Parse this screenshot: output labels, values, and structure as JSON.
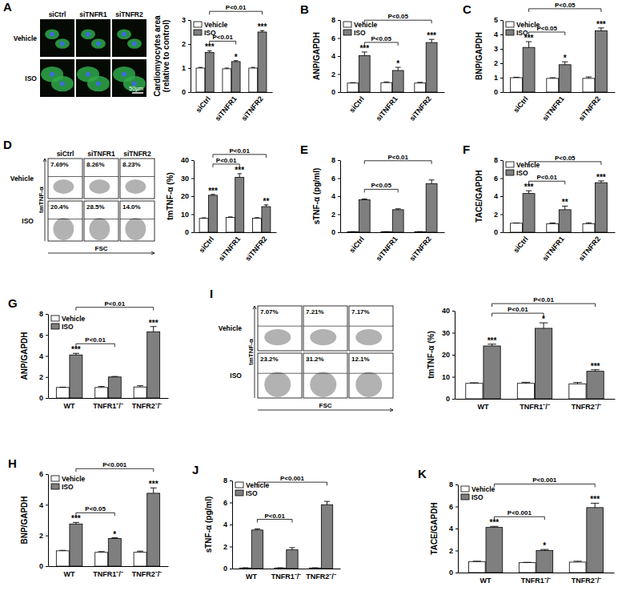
{
  "chart_data": [
    {
      "type": "bar",
      "y_label": "Cardiomyocytes area (relative to control)",
      "categories": [
        "siCtrl",
        "siTNFR1",
        "siTNFR2"
      ],
      "series": [
        {
          "name": "Vehicle",
          "color": "#ffffff",
          "values": [
            1.0,
            0.97,
            1.0
          ],
          "errors": [
            0.03,
            0.03,
            0.03
          ]
        },
        {
          "name": "ISO",
          "color": "#7f7f7f",
          "values": [
            1.65,
            1.27,
            2.5
          ],
          "errors": [
            0.07,
            0.04,
            0.06
          ],
          "significance": [
            "***",
            "*",
            "***"
          ]
        }
      ],
      "ylim": [
        0,
        3
      ],
      "yticks": [
        0,
        1,
        2,
        3
      ],
      "legend": "top-left",
      "comparisons": [
        {
          "between": [
            "siCtrl",
            "siTNFR1"
          ],
          "label": "P<0.01"
        },
        {
          "between": [
            "siCtrl",
            "siTNFR2"
          ],
          "label": "P<0.01"
        }
      ]
    },
    {
      "type": "bar",
      "title": "B",
      "y_label": "ANP/GAPDH",
      "categories": [
        "siCtrl",
        "siTNFR1",
        "siTNFR2"
      ],
      "series": [
        {
          "name": "Vehicle",
          "color": "#ffffff",
          "values": [
            1.0,
            1.05,
            1.0
          ],
          "errors": [
            0.05,
            0.08,
            0.08
          ]
        },
        {
          "name": "ISO",
          "color": "#7f7f7f",
          "values": [
            4.05,
            2.4,
            5.5
          ],
          "errors": [
            0.4,
            0.35,
            0.35
          ],
          "significance": [
            "***",
            "*",
            "***"
          ]
        }
      ],
      "ylim": [
        0,
        8
      ],
      "yticks": [
        0,
        2,
        4,
        6,
        8
      ],
      "legend": "top-left",
      "comparisons": [
        {
          "between": [
            "siCtrl",
            "siTNFR1"
          ],
          "label": "P<0.05"
        },
        {
          "between": [
            "siCtrl",
            "siTNFR2"
          ],
          "label": "P<0.05"
        }
      ]
    },
    {
      "type": "bar",
      "title": "C",
      "y_label": "BNP/GAPDH",
      "categories": [
        "siCtrl",
        "siTNFR1",
        "siTNFR2"
      ],
      "series": [
        {
          "name": "Vehicle",
          "color": "#ffffff",
          "values": [
            1.0,
            0.95,
            0.95
          ],
          "errors": [
            0.03,
            0.05,
            0.1
          ]
        },
        {
          "name": "ISO",
          "color": "#7f7f7f",
          "values": [
            3.1,
            1.9,
            4.25
          ],
          "errors": [
            0.4,
            0.2,
            0.2
          ],
          "significance": [
            "***",
            "*",
            "***"
          ]
        }
      ],
      "ylim": [
        0,
        5
      ],
      "yticks": [
        0,
        1,
        2,
        3,
        4,
        5
      ],
      "legend": "top-left",
      "comparisons": [
        {
          "between": [
            "siCtrl",
            "siTNFR1"
          ],
          "label": "P<0.05"
        },
        {
          "between": [
            "siCtrl",
            "siTNFR2"
          ],
          "label": "P<0.05"
        }
      ]
    },
    {
      "type": "bar",
      "y_label": "tmTNF-α (%)",
      "categories": [
        "siCtrl",
        "siTNFR1",
        "siTNFR2"
      ],
      "series": [
        {
          "color": "#ffffff",
          "values": [
            7.7,
            8.2,
            7.8
          ],
          "errors": [
            0.3,
            0.3,
            0.3
          ]
        },
        {
          "color": "#7f7f7f",
          "values": [
            20.5,
            30.5,
            14.2
          ],
          "errors": [
            0.5,
            2.0,
            1.0
          ],
          "significance": [
            "***",
            "***",
            "**"
          ]
        }
      ],
      "ylim": [
        0,
        40
      ],
      "yticks": [
        0,
        10,
        20,
        30,
        40
      ],
      "comparisons": [
        {
          "between": [
            "siCtrl",
            "siTNFR1"
          ],
          "label": "P<0.01"
        },
        {
          "between": [
            "siCtrl",
            "siTNFR2"
          ],
          "label": "P<0.01"
        }
      ]
    },
    {
      "type": "bar",
      "title": "E",
      "y_label": "sTNF-α (pg/ml)",
      "categories": [
        "siCtrl",
        "siTNFR1",
        "siTNFR2"
      ],
      "series": [
        {
          "color": "#ffffff",
          "values": [
            0.05,
            0.05,
            0.05
          ],
          "errors": [
            0.02,
            0.02,
            0.02
          ]
        },
        {
          "color": "#7f7f7f",
          "values": [
            3.6,
            2.5,
            5.4
          ],
          "errors": [
            0.1,
            0.1,
            0.4
          ]
        }
      ],
      "ylim": [
        0,
        8
      ],
      "yticks": [
        0,
        2,
        4,
        6,
        8
      ],
      "comparisons": [
        {
          "between": [
            "siCtrl",
            "siTNFR1"
          ],
          "label": "P<0.05"
        },
        {
          "between": [
            "siCtrl",
            "siTNFR2"
          ],
          "label": "P<0.01"
        }
      ]
    },
    {
      "type": "bar",
      "title": "F",
      "y_label": "TACE/GAPDH",
      "categories": [
        "siCtrl",
        "siTNFR1",
        "siTNFR2"
      ],
      "series": [
        {
          "name": "Vehicle",
          "color": "#ffffff",
          "values": [
            1.0,
            0.95,
            0.95
          ],
          "errors": [
            0.03,
            0.08,
            0.1
          ]
        },
        {
          "name": "ISO",
          "color": "#7f7f7f",
          "values": [
            4.3,
            2.5,
            5.5
          ],
          "errors": [
            0.3,
            0.4,
            0.2
          ],
          "significance": [
            "***",
            "**",
            "***"
          ]
        }
      ],
      "ylim": [
        0,
        8
      ],
      "yticks": [
        0,
        2,
        4,
        6,
        8
      ],
      "legend": "top-left",
      "comparisons": [
        {
          "between": [
            "siCtrl",
            "siTNFR1"
          ],
          "label": "P<0.01"
        },
        {
          "between": [
            "siCtrl",
            "siTNFR2"
          ],
          "label": "P<0.05"
        }
      ]
    },
    {
      "type": "bar",
      "title": "G",
      "y_label": "ANP/GAPDH",
      "categories": [
        "WT",
        "TNFR1⁻/⁻",
        "TNFR2⁻/⁻"
      ],
      "series": [
        {
          "name": "Vehicle",
          "color": "#ffffff",
          "values": [
            1.0,
            1.0,
            1.05
          ],
          "errors": [
            0.03,
            0.1,
            0.12
          ]
        },
        {
          "name": "ISO",
          "color": "#7f7f7f",
          "values": [
            4.1,
            2.0,
            6.3
          ],
          "errors": [
            0.15,
            0.05,
            0.5
          ],
          "significance": [
            "***",
            null,
            "***"
          ]
        }
      ],
      "ylim": [
        0,
        8
      ],
      "yticks": [
        0,
        2,
        4,
        6,
        8
      ],
      "legend": "top-left",
      "comparisons": [
        {
          "between": [
            "WT",
            "TNFR1⁻/⁻"
          ],
          "label": "P<0.01"
        },
        {
          "between": [
            "WT",
            "TNFR2⁻/⁻"
          ],
          "label": "P<0.01"
        }
      ]
    },
    {
      "type": "bar",
      "title": "H",
      "y_label": "BNP/GAPDH",
      "categories": [
        "WT",
        "TNFR1⁻/⁻",
        "TNFR2⁻/⁻"
      ],
      "series": [
        {
          "name": "Vehicle",
          "color": "#ffffff",
          "values": [
            1.0,
            0.9,
            0.9
          ],
          "errors": [
            0.03,
            0.05,
            0.08
          ]
        },
        {
          "name": "ISO",
          "color": "#7f7f7f",
          "values": [
            2.75,
            1.8,
            4.75
          ],
          "errors": [
            0.1,
            0.05,
            0.35
          ],
          "significance": [
            "***",
            "*",
            "***"
          ]
        }
      ],
      "ylim": [
        0,
        6
      ],
      "yticks": [
        0,
        2,
        4,
        6
      ],
      "legend": "top-left",
      "comparisons": [
        {
          "between": [
            "WT",
            "TNFR1⁻/⁻"
          ],
          "label": "P<0.05"
        },
        {
          "between": [
            "WT",
            "TNFR2⁻/⁻"
          ],
          "label": "P<0.001"
        }
      ]
    },
    {
      "type": "bar",
      "y_label": "tmTNF-α (%)",
      "categories": [
        "WT",
        "TNFR1⁻/⁻",
        "TNFR2⁻/⁻"
      ],
      "series": [
        {
          "color": "#ffffff",
          "values": [
            7.0,
            7.0,
            6.8
          ],
          "errors": [
            0.3,
            0.5,
            0.6
          ]
        },
        {
          "color": "#7f7f7f",
          "values": [
            24.0,
            32.0,
            12.5
          ],
          "errors": [
            0.8,
            2.5,
            0.7
          ],
          "significance": [
            "***",
            "*",
            "***"
          ]
        }
      ],
      "ylim": [
        0,
        40
      ],
      "yticks": [
        0,
        10,
        20,
        30,
        40
      ],
      "comparisons": [
        {
          "between": [
            "WT",
            "TNFR1⁻/⁻"
          ],
          "label": "P<0.01"
        },
        {
          "between": [
            "WT",
            "TNFR2⁻/⁻"
          ],
          "label": "P<0.01"
        }
      ]
    },
    {
      "type": "bar",
      "title": "J",
      "y_label": "sTNF-α (pg/ml)",
      "categories": [
        "WT",
        "TNFR1⁻/⁻",
        "TNFR2⁻/⁻"
      ],
      "series": [
        {
          "name": "Vehicle",
          "color": "#ffffff",
          "values": [
            0.05,
            0.05,
            0.05
          ],
          "errors": [
            0.02,
            0.02,
            0.02
          ]
        },
        {
          "name": "ISO",
          "color": "#7f7f7f",
          "values": [
            3.5,
            1.7,
            5.8
          ],
          "errors": [
            0.1,
            0.2,
            0.3
          ]
        }
      ],
      "ylim": [
        0,
        8
      ],
      "yticks": [
        0,
        2,
        4,
        6,
        8
      ],
      "legend": "top-left",
      "comparisons": [
        {
          "between": [
            "WT",
            "TNFR1⁻/⁻"
          ],
          "label": "P<0.01"
        },
        {
          "between": [
            "WT",
            "TNFR2⁻/⁻"
          ],
          "label": "P<0.001"
        }
      ]
    },
    {
      "type": "bar",
      "title": "K",
      "y_label": "TACE/GAPDH",
      "categories": [
        "WT",
        "TNFR1⁻/⁻",
        "TNFR2⁻/⁻"
      ],
      "series": [
        {
          "name": "Vehicle",
          "color": "#ffffff",
          "values": [
            1.0,
            0.9,
            0.95
          ],
          "errors": [
            0.03,
            0.03,
            0.08
          ]
        },
        {
          "name": "ISO",
          "color": "#7f7f7f",
          "values": [
            4.1,
            2.0,
            5.9
          ],
          "errors": [
            0.1,
            0.1,
            0.4
          ],
          "significance": [
            "***",
            "*",
            "***"
          ]
        }
      ],
      "ylim": [
        0,
        8
      ],
      "yticks": [
        0,
        2,
        4,
        6,
        8
      ],
      "legend": "top-left",
      "comparisons": [
        {
          "between": [
            "WT",
            "TNFR1⁻/⁻"
          ],
          "label": "P<0.001"
        },
        {
          "between": [
            "WT",
            "TNFR2⁻/⁻"
          ],
          "label": "P<0.001"
        }
      ]
    }
  ],
  "images": [
    {
      "panel": "A",
      "type": "micrograph",
      "columns": [
        "siCtrl",
        "siTNFR1",
        "siTNFR2"
      ],
      "rows": [
        "Vehicle",
        "ISO"
      ],
      "scale_bar": "50μm"
    },
    {
      "panel": "D",
      "type": "flow",
      "columns": [
        "siCtrl",
        "siTNFR1",
        "siTNFR2"
      ],
      "rows": [
        "Vehicle",
        "ISO"
      ],
      "cells": [
        [
          "7.69%",
          "8.26%",
          "8.23%"
        ],
        [
          "20.4%",
          "28.5%",
          "14.0%"
        ]
      ],
      "y_label": "tmTNF-α",
      "x_label": "FSC"
    },
    {
      "panel": "I",
      "type": "flow",
      "rows": [
        "Vehicle",
        "ISO"
      ],
      "cells": [
        [
          "7.07%",
          "7.21%",
          "7.17%"
        ],
        [
          "23.2%",
          "31.2%",
          "12.1%"
        ]
      ],
      "y_label": "tmTNF-α",
      "x_label": "FSC"
    }
  ]
}
